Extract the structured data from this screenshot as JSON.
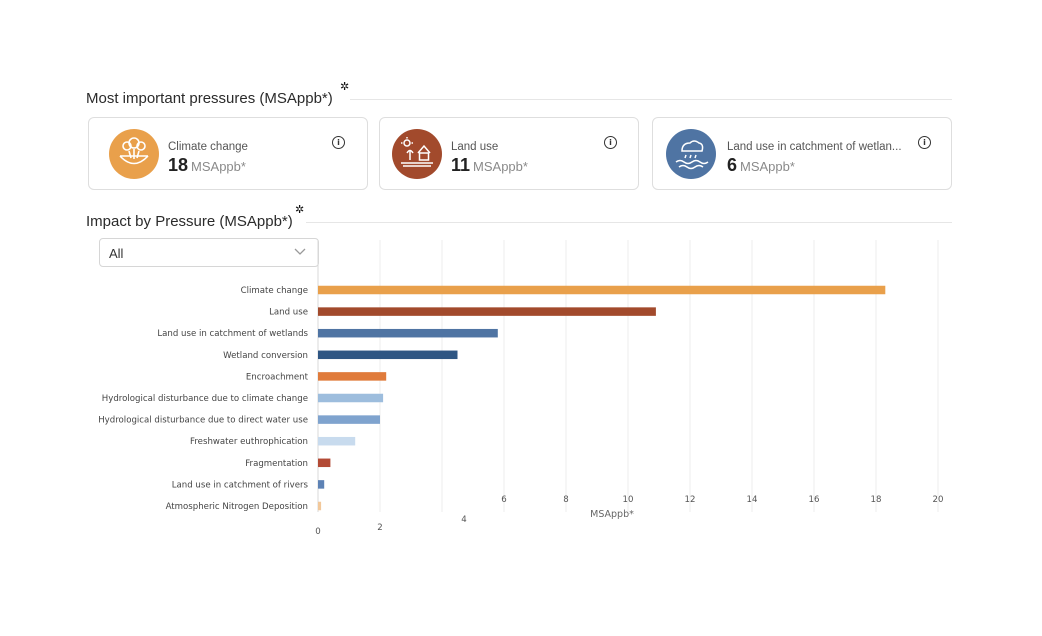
{
  "sections": {
    "pressures_title": "Most important pressures (MSAppb*)",
    "impact_title": "Impact by Pressure (MSAppb*)"
  },
  "cards": [
    {
      "label": "Climate change",
      "value": "18",
      "unit": "MSAppb*",
      "color": "#E9A04B",
      "icon": "climate-icon"
    },
    {
      "label": "Land use",
      "value": "11",
      "unit": "MSAppb*",
      "color": "#A24A2C",
      "icon": "land-use-icon"
    },
    {
      "label": "Land use in catchment of wetlan...",
      "value": "6",
      "unit": "MSAppb*",
      "color": "#4F74A3",
      "icon": "wetland-icon"
    }
  ],
  "filter": {
    "selected": "All"
  },
  "chart_data": {
    "type": "bar",
    "orientation": "horizontal",
    "categories": [
      "Climate change",
      "Land use",
      "Land use in catchment of wetlands",
      "Wetland conversion",
      "Encroachment",
      "Hydrological disturbance due to climate change",
      "Hydrological disturbance due to direct water use",
      "Freshwater euthrophication",
      "Fragmentation",
      "Land use in catchment of rivers",
      "Atmospheric Nitrogen Deposition"
    ],
    "values": [
      18.3,
      10.9,
      5.8,
      4.5,
      2.2,
      2.1,
      2.0,
      1.2,
      0.4,
      0.2,
      0.1
    ],
    "colors": [
      "#E9A04B",
      "#A24A2C",
      "#4F74A3",
      "#2F5683",
      "#E07B3B",
      "#9DBDDD",
      "#7FA3CE",
      "#C8DBEE",
      "#B34A35",
      "#5D82B5",
      "#F2C89A"
    ],
    "xlabel": "MSAppb*",
    "xticks": [
      0,
      2,
      4,
      6,
      8,
      10,
      12,
      14,
      16,
      18,
      20
    ],
    "xlim": [
      0,
      20
    ],
    "grid": true,
    "legend": "none"
  }
}
